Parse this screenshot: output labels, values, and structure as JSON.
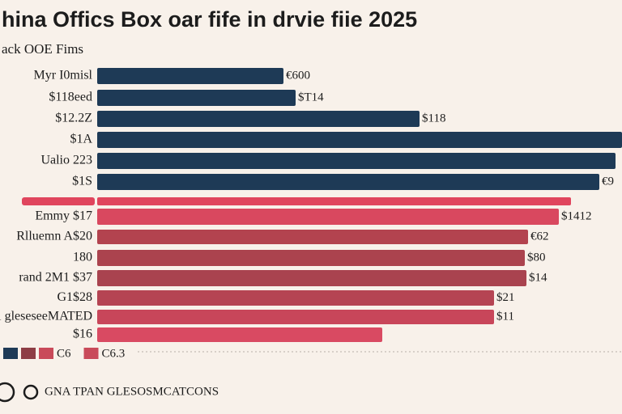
{
  "chart_data": {
    "type": "hbar",
    "title": "hina Offics Box oar fife in drvie fiie 2025",
    "subtitle": "ack OOE Fims",
    "categories": [
      "Myr I0misl",
      "$118eed",
      "$12.2Z",
      "$1A",
      "Ualio  223",
      "$1S",
      null,
      "Emmy $17",
      "Rlluemn A$20",
      "180",
      "rand 2M1 $37",
      "G1$28",
      "cl gleseseeMATED",
      "$16"
    ],
    "values": [
      230,
      245,
      398,
      648,
      640,
      620,
      585,
      570,
      532,
      528,
      530,
      490,
      490,
      352
    ],
    "value_labels": [
      "€600",
      "$T14",
      "$118",
      null,
      null,
      "€9",
      null,
      "$1412",
      "€62",
      "$80",
      "$14",
      "$21",
      "$11",
      null
    ],
    "colors": [
      "#1e3a56",
      "#1e3a56",
      "#1e3a56",
      "#1e3a56",
      "#1e3a56",
      "#1e3a56",
      "#e0455d",
      "#d9485f",
      "#b3434f",
      "#ab434e",
      "#a9434f",
      "#b54453",
      "#c8465a",
      "#d94a62"
    ],
    "xlim": [
      0,
      650
    ],
    "legend": [
      {
        "color": "#1e3a56"
      },
      {
        "color": "#8e3d45"
      },
      {
        "color": "#c94a5a",
        "label": "C6"
      },
      {
        "color": "#c94a5a",
        "label": "C6.3"
      }
    ]
  },
  "footer": "GNA TPAN GLESOSMCATCONS"
}
